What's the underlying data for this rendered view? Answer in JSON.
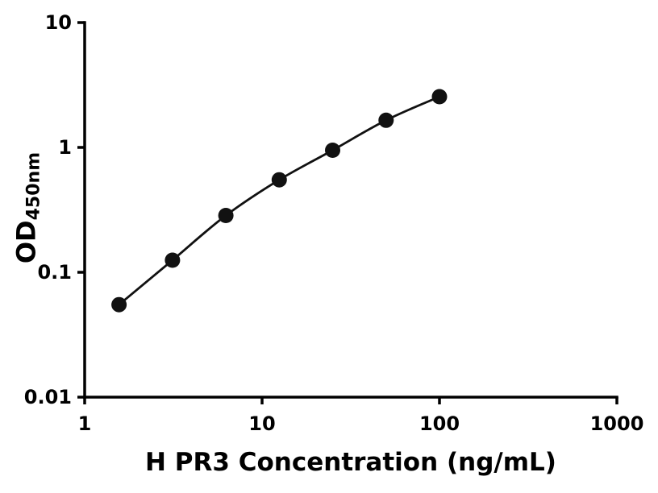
{
  "figure": {
    "background_color": "#ffffff",
    "axis_color": "#000000",
    "text_color": "#000000"
  },
  "chart_data": {
    "type": "scatter",
    "title": "",
    "xlabel": "H PR3 Concentration (ng/mL)",
    "ylabel_main": "OD",
    "ylabel_sub": "450nm",
    "x_scale": "log",
    "y_scale": "log",
    "xlim": [
      1,
      1000
    ],
    "ylim": [
      0.01,
      10
    ],
    "x_ticks": [
      1,
      10,
      100,
      1000
    ],
    "x_tick_labels": [
      "1",
      "10",
      "100",
      "1000"
    ],
    "y_ticks": [
      0.01,
      0.1,
      1,
      10
    ],
    "y_tick_labels": [
      "0.01",
      "0.1",
      "1",
      "10"
    ],
    "grid": false,
    "legend": "none",
    "line_style": "smooth-fit-curve",
    "marker": "filled-circle",
    "marker_color": "#111111",
    "line_color": "#111111",
    "points": [
      {
        "x": 1.5625,
        "y": 0.055
      },
      {
        "x": 3.125,
        "y": 0.125
      },
      {
        "x": 6.25,
        "y": 0.285
      },
      {
        "x": 12.5,
        "y": 0.55
      },
      {
        "x": 25,
        "y": 0.95
      },
      {
        "x": 50,
        "y": 1.65
      },
      {
        "x": 100,
        "y": 2.55
      }
    ]
  }
}
